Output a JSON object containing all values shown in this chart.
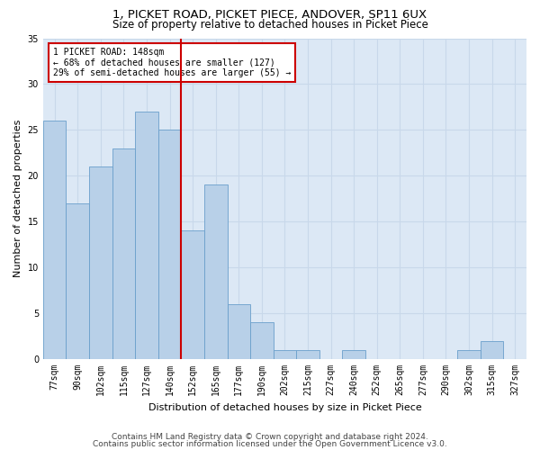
{
  "title1": "1, PICKET ROAD, PICKET PIECE, ANDOVER, SP11 6UX",
  "title2": "Size of property relative to detached houses in Picket Piece",
  "xlabel": "Distribution of detached houses by size in Picket Piece",
  "ylabel": "Number of detached properties",
  "categories": [
    "77sqm",
    "90sqm",
    "102sqm",
    "115sqm",
    "127sqm",
    "140sqm",
    "152sqm",
    "165sqm",
    "177sqm",
    "190sqm",
    "202sqm",
    "215sqm",
    "227sqm",
    "240sqm",
    "252sqm",
    "265sqm",
    "277sqm",
    "290sqm",
    "302sqm",
    "315sqm",
    "327sqm"
  ],
  "values": [
    26,
    17,
    21,
    23,
    27,
    25,
    14,
    19,
    6,
    4,
    1,
    1,
    0,
    1,
    0,
    0,
    0,
    0,
    1,
    2,
    0
  ],
  "bar_color": "#b8d0e8",
  "bar_edge_color": "#6a9fcb",
  "vline_x_index": 6,
  "vline_color": "#cc0000",
  "annotation_text": "1 PICKET ROAD: 148sqm\n← 68% of detached houses are smaller (127)\n29% of semi-detached houses are larger (55) →",
  "annotation_box_color": "#ffffff",
  "annotation_box_edge": "#cc0000",
  "ylim": [
    0,
    35
  ],
  "yticks": [
    0,
    5,
    10,
    15,
    20,
    25,
    30,
    35
  ],
  "grid_color": "#c8d8ea",
  "bg_color": "#dce8f5",
  "footnote1": "Contains HM Land Registry data © Crown copyright and database right 2024.",
  "footnote2": "Contains public sector information licensed under the Open Government Licence v3.0.",
  "title_fontsize": 9.5,
  "subtitle_fontsize": 8.5,
  "label_fontsize": 8,
  "tick_fontsize": 7,
  "annot_fontsize": 7,
  "footnote_fontsize": 6.5
}
